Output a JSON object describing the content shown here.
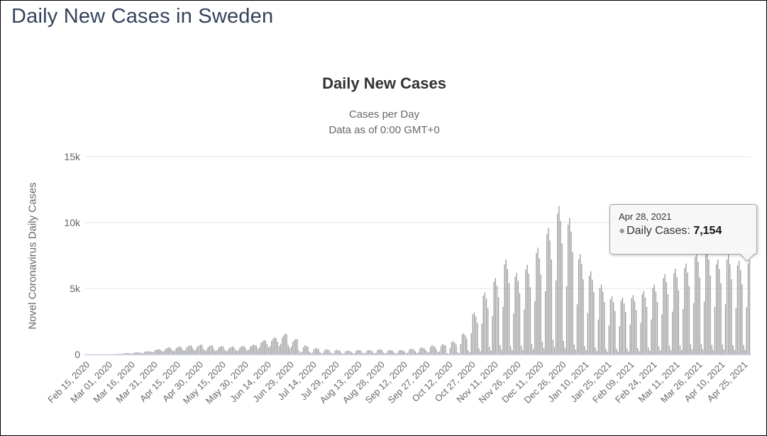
{
  "page": {
    "title": "Daily New Cases in Sweden"
  },
  "chart": {
    "title": "Daily New Cases",
    "subtitle_line1": "Cases per Day",
    "subtitle_line2": "Data as of 0:00 GMT+0",
    "y_axis_title": "Novel Coronavirus Daily Cases"
  },
  "tooltip": {
    "date": "Apr 28, 2021",
    "bullet": "●",
    "label": "Daily Cases",
    "separator": ": ",
    "value": "7,154"
  },
  "colors": {
    "bar": "#9a9a9a",
    "gridline": "#e6e6e6",
    "axis_line": "#ccd6eb",
    "tick_label": "#666666",
    "title": "#333333",
    "page_title": "#35425b",
    "tooltip_bg": "#f7f7f7",
    "tooltip_border": "#a6a6a6"
  },
  "chart_data": {
    "type": "bar",
    "title": "Daily New Cases",
    "subtitle": [
      "Cases per Day",
      "Data as of 0:00 GMT+0"
    ],
    "xlabel": "",
    "ylabel": "Novel Coronavirus Daily Cases",
    "ylim": [
      0,
      15000
    ],
    "ytick_values": [
      0,
      5000,
      10000,
      15000
    ],
    "ytick_labels": [
      "0",
      "5k",
      "10k",
      "15k"
    ],
    "grid": true,
    "legend": false,
    "x_start_date": "Feb 15, 2020",
    "x_end_date": "Apr 28, 2021",
    "xtick_indices": [
      0,
      15,
      30,
      45,
      60,
      75,
      90,
      105,
      120,
      135,
      150,
      165,
      180,
      195,
      210,
      225,
      240,
      255,
      270,
      285,
      300,
      315,
      330,
      345,
      360,
      375,
      390,
      405,
      420,
      435
    ],
    "xtick_labels": [
      "Feb 15, 2020",
      "Mar 01, 2020",
      "Mar 16, 2020",
      "Mar 31, 2020",
      "Apr 15, 2020",
      "Apr 30, 2020",
      "May 15, 2020",
      "May 30, 2020",
      "Jun 14, 2020",
      "Jun 29, 2020",
      "Jul 14, 2020",
      "Jul 29, 2020",
      "Aug 13, 2020",
      "Aug 28, 2020",
      "Sep 12, 2020",
      "Sep 27, 2020",
      "Oct 12, 2020",
      "Oct 27, 2020",
      "Nov 11, 2020",
      "Nov 26, 2020",
      "Dec 11, 2020",
      "Dec 26, 2020",
      "Jan 10, 2021",
      "Jan 25, 2021",
      "Feb 09, 2021",
      "Feb 24, 2021",
      "Mar 11, 2021",
      "Mar 26, 2021",
      "Apr 10, 2021",
      "Apr 25, 2021"
    ],
    "highlighted_point": {
      "date": "Apr 28, 2021",
      "index": 438,
      "value": 7154
    },
    "series": [
      {
        "name": "Daily Cases",
        "color": "#9a9a9a",
        "values": [
          1,
          1,
          1,
          2,
          2,
          2,
          2,
          2,
          1,
          3,
          5,
          6,
          6,
          5,
          18,
          12,
          15,
          24,
          27,
          30,
          29,
          60,
          40,
          50,
          80,
          90,
          100,
          95,
          96,
          64,
          80,
          128,
          144,
          160,
          152,
          144,
          96,
          120,
          192,
          216,
          240,
          228,
          240,
          160,
          200,
          320,
          360,
          400,
          380,
          330,
          220,
          275,
          440,
          495,
          550,
          523,
          366,
          244,
          305,
          488,
          549,
          610,
          580,
          420,
          280,
          350,
          560,
          630,
          700,
          665,
          450,
          300,
          375,
          600,
          675,
          750,
          713,
          420,
          280,
          350,
          560,
          630,
          700,
          665,
          390,
          260,
          325,
          520,
          585,
          650,
          618,
          360,
          240,
          300,
          480,
          540,
          600,
          570,
          390,
          260,
          325,
          520,
          585,
          650,
          618,
          450,
          300,
          375,
          600,
          675,
          750,
          713,
          660,
          440,
          550,
          880,
          990,
          1100,
          1045,
          780,
          520,
          650,
          1040,
          1170,
          1300,
          1235,
          960,
          640,
          800,
          1280,
          1440,
          1600,
          1520,
          720,
          480,
          600,
          960,
          1080,
          1200,
          1140,
          315,
          140,
          210,
          560,
          700,
          630,
          595,
          225,
          100,
          150,
          400,
          500,
          450,
          425,
          180,
          80,
          120,
          320,
          400,
          360,
          340,
          158,
          70,
          105,
          280,
          350,
          315,
          298,
          135,
          60,
          90,
          240,
          300,
          270,
          255,
          158,
          70,
          105,
          280,
          350,
          315,
          298,
          150,
          75,
          110,
          285,
          345,
          320,
          300,
          180,
          80,
          120,
          320,
          400,
          360,
          340,
          155,
          72,
          108,
          282,
          348,
          318,
          296,
          160,
          78,
          112,
          278,
          352,
          312,
          302,
          203,
          90,
          135,
          360,
          450,
          405,
          383,
          248,
          110,
          165,
          440,
          550,
          495,
          468,
          315,
          140,
          210,
          560,
          700,
          630,
          595,
          360,
          160,
          240,
          640,
          800,
          720,
          680,
          100,
          50,
          500,
          950,
          1000,
          900,
          750,
          160,
          80,
          800,
          1520,
          1600,
          1440,
          1200,
          320,
          160,
          1600,
          3040,
          3200,
          2880,
          2400,
          470,
          235,
          2350,
          4465,
          4700,
          4230,
          3525,
          580,
          290,
          2900,
          5510,
          5800,
          5220,
          4350,
          720,
          360,
          3600,
          6840,
          7200,
          6480,
          5400,
          620,
          310,
          3100,
          5890,
          6200,
          5580,
          4650,
          680,
          340,
          3400,
          6460,
          6800,
          6120,
          5100,
          810,
          405,
          4050,
          7695,
          8100,
          7290,
          6075,
          960,
          480,
          4800,
          9120,
          9600,
          8640,
          7200,
          1125,
          563,
          5625,
          10688,
          11250,
          10125,
          8438,
          1035,
          518,
          5175,
          9833,
          10350,
          9315,
          7763,
          760,
          380,
          3800,
          7220,
          7600,
          6840,
          5700,
          630,
          315,
          3150,
          5985,
          6300,
          5670,
          4725,
          530,
          265,
          2650,
          5035,
          5300,
          4770,
          3975,
          440,
          220,
          2200,
          4180,
          4400,
          3960,
          3300,
          430,
          215,
          2150,
          4085,
          4300,
          3870,
          3225,
          450,
          225,
          2250,
          4275,
          4500,
          4050,
          3375,
          480,
          240,
          2400,
          4560,
          4800,
          4320,
          3600,
          530,
          265,
          2650,
          5035,
          5300,
          4770,
          3975,
          610,
          305,
          3050,
          5795,
          6100,
          5490,
          4575,
          650,
          325,
          3250,
          6175,
          6500,
          5850,
          4875,
          690,
          345,
          3450,
          6555,
          6900,
          6210,
          5175,
          780,
          390,
          3900,
          7410,
          7800,
          7020,
          5850,
          800,
          400,
          4000,
          7600,
          8000,
          7200,
          6000,
          720,
          360,
          3600,
          6840,
          7200,
          6480,
          5400,
          760,
          380,
          3800,
          7220,
          7600,
          6840,
          5700,
          710,
          355,
          3550,
          6745,
          7100,
          6390,
          5325,
          715,
          360,
          3580,
          6900,
          7154
        ]
      }
    ]
  }
}
